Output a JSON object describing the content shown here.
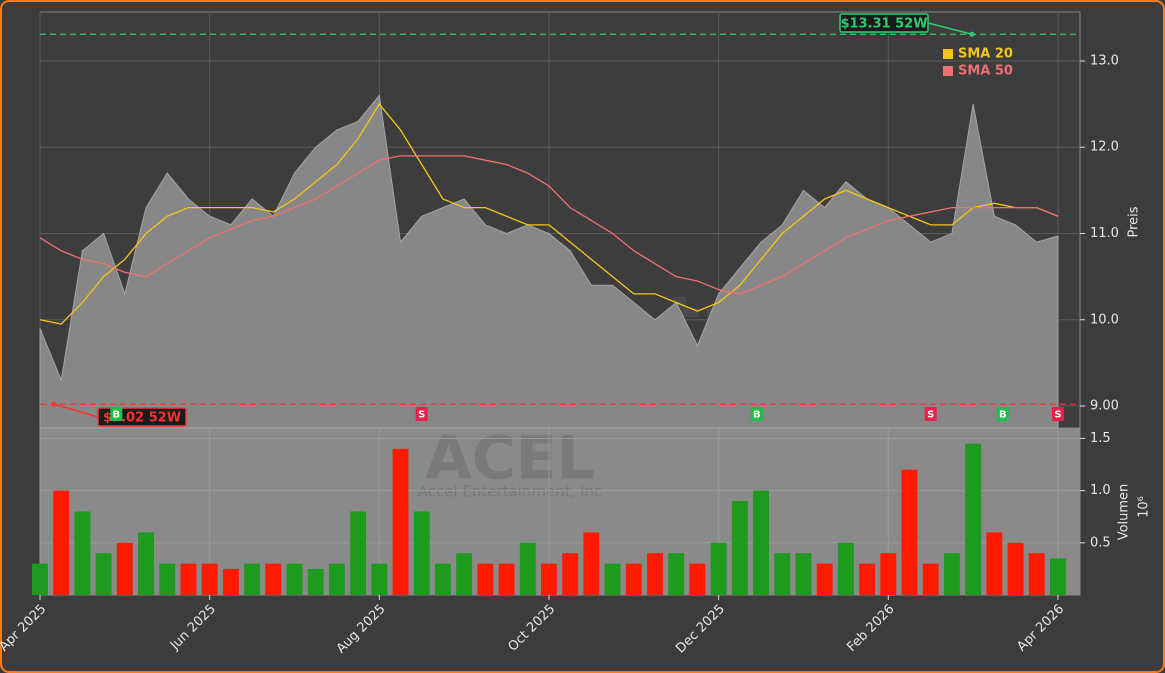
{
  "chart_data": {
    "type": "price-volume",
    "watermark": "forexsignale.trade",
    "ticker": "ACEL",
    "company": "Accel Entertainment, Inc",
    "ylabel": "Preis",
    "y2label": "Volumen",
    "y2_multiplier": "10⁶",
    "x": [
      0,
      0.25,
      0.5,
      0.75,
      1,
      1.25,
      1.5,
      1.75,
      2,
      2.25,
      2.5,
      2.75,
      3,
      3.25,
      3.5,
      3.75,
      4,
      4.25,
      4.5,
      4.75,
      5,
      5.25,
      5.5,
      5.75,
      6,
      6.25,
      6.5,
      6.75,
      7,
      7.25,
      7.5,
      7.75,
      8,
      8.25,
      8.5,
      8.75,
      9,
      9.25,
      9.5,
      9.75,
      10,
      10.25,
      10.5,
      10.75,
      11,
      11.25,
      11.5,
      11.75,
      12
    ],
    "xlim": [
      0,
      12.26
    ],
    "xticks": [
      {
        "value": 0,
        "label": "Apr 2025"
      },
      {
        "value": 2,
        "label": "Jun 2025"
      },
      {
        "value": 4,
        "label": "Aug 2025"
      },
      {
        "value": 6,
        "label": "Oct 2025"
      },
      {
        "value": 8,
        "label": "Dec 2025"
      },
      {
        "value": 10,
        "label": "Feb 2026"
      },
      {
        "value": 12,
        "label": "Apr 2026"
      }
    ],
    "ylim": [
      8.745,
      13.568
    ],
    "yticks": [
      {
        "value": 9,
        "label": "9.00"
      },
      {
        "value": 10,
        "label": "10.0"
      },
      {
        "value": 11,
        "label": "11.0"
      },
      {
        "value": 12,
        "label": "12.0"
      },
      {
        "value": 13,
        "label": "13.0"
      }
    ],
    "y2lim": [
      0,
      1.6
    ],
    "y2ticks": [
      0.5,
      {
        "value": 1,
        "label": "1.0"
      },
      1.5
    ],
    "price": {
      "name": "Close",
      "color": "#8c8c8c",
      "values": [
        9.9,
        9.3,
        10.8,
        11.0,
        10.3,
        11.3,
        11.7,
        11.4,
        11.2,
        11.1,
        11.4,
        11.2,
        11.7,
        12.0,
        12.2,
        12.3,
        12.6,
        10.9,
        11.2,
        11.3,
        11.4,
        11.1,
        11.0,
        11.1,
        11.0,
        10.8,
        10.4,
        10.4,
        10.2,
        10.0,
        10.2,
        9.7,
        10.3,
        10.6,
        10.9,
        11.1,
        11.5,
        11.3,
        11.6,
        11.4,
        11.3,
        11.1,
        10.9,
        11.0,
        12.5,
        11.2,
        11.1,
        10.9,
        10.97
      ]
    },
    "series": [
      {
        "name": "SMA 20",
        "color": "#f5c518",
        "values": [
          10.0,
          9.95,
          10.2,
          10.5,
          10.7,
          11.0,
          11.2,
          11.3,
          11.3,
          11.3,
          11.3,
          11.25,
          11.4,
          11.6,
          11.8,
          12.1,
          12.5,
          12.2,
          11.8,
          11.4,
          11.3,
          11.3,
          11.2,
          11.1,
          11.1,
          10.9,
          10.7,
          10.5,
          10.3,
          10.3,
          10.2,
          10.1,
          10.2,
          10.4,
          10.7,
          11.0,
          11.2,
          11.4,
          11.5,
          11.4,
          11.3,
          11.2,
          11.1,
          11.1,
          11.3,
          11.35,
          11.3,
          11.3,
          11.2
        ]
      },
      {
        "name": "SMA 50",
        "color": "#f07070",
        "values": [
          10.95,
          10.8,
          10.7,
          10.65,
          10.55,
          10.5,
          10.65,
          10.8,
          10.95,
          11.05,
          11.15,
          11.2,
          11.3,
          11.4,
          11.55,
          11.7,
          11.85,
          11.9,
          11.9,
          11.9,
          11.9,
          11.85,
          11.8,
          11.7,
          11.55,
          11.3,
          11.15,
          11.0,
          10.8,
          10.65,
          10.5,
          10.45,
          10.35,
          10.3,
          10.4,
          10.5,
          10.65,
          10.8,
          10.95,
          11.05,
          11.15,
          11.2,
          11.25,
          11.3,
          11.3,
          11.3,
          11.3,
          11.3,
          11.2
        ]
      }
    ],
    "volume": {
      "name": "Volumen",
      "axis": "y2",
      "up_color": "#1e9a1e",
      "down_color": "#ff1a00",
      "values": [
        0.3,
        1.0,
        0.8,
        0.4,
        0.5,
        0.6,
        0.3,
        0.3,
        0.3,
        0.25,
        0.3,
        0.3,
        0.3,
        0.25,
        0.3,
        0.8,
        0.3,
        1.4,
        0.8,
        0.3,
        0.4,
        0.3,
        0.3,
        0.5,
        0.3,
        0.4,
        0.6,
        0.3,
        0.3,
        0.4,
        0.4,
        0.3,
        0.5,
        0.9,
        1.0,
        0.4,
        0.4,
        0.3,
        0.5,
        0.3,
        0.4,
        1.2,
        0.3,
        0.4,
        1.45,
        0.6,
        0.5,
        0.4,
        0.35
      ]
    },
    "high_52w": {
      "value": 13.31,
      "label": "$13.31 52W",
      "color": "#2ecc71"
    },
    "low_52w": {
      "value": 9.02,
      "label": "$9.02 52W",
      "color": "#ff3030"
    },
    "signals": [
      {
        "x": 0.9,
        "label": "B",
        "color": "#1ec04a"
      },
      {
        "x": 4.5,
        "label": "S",
        "color": "#e8204a"
      },
      {
        "x": 8.45,
        "label": "B",
        "color": "#1ec04a"
      },
      {
        "x": 10.5,
        "label": "S",
        "color": "#e8204a"
      },
      {
        "x": 11.35,
        "label": "B",
        "color": "#1ec04a"
      },
      {
        "x": 12.0,
        "label": "S",
        "color": "#e8204a"
      }
    ],
    "grid": true
  }
}
